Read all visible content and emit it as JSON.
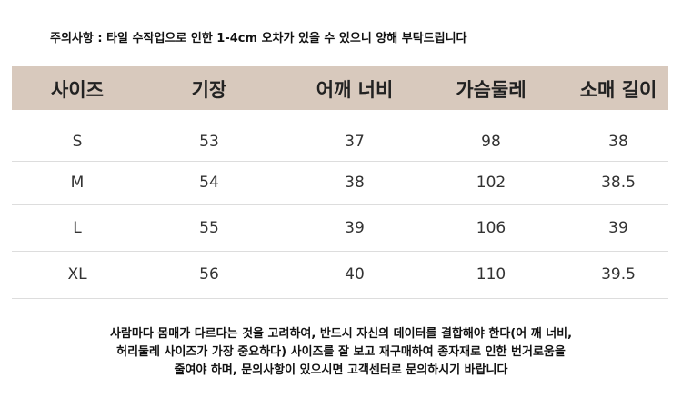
{
  "notice": "주의사항 : 타일 수작업으로 인한 1-4cm 오차가 있을 수 있으니 양해 부탁드립니다",
  "table": {
    "header": [
      "사이즈",
      "기장",
      "어깨 너비",
      "가슴둘레",
      "소매 길이"
    ],
    "rows": [
      [
        "S",
        53,
        37,
        98,
        38
      ],
      [
        "M",
        54,
        38,
        102,
        38.5
      ],
      [
        "L",
        55,
        39,
        106,
        39
      ],
      [
        "XL",
        56,
        40,
        110,
        39.5
      ]
    ]
  },
  "footer": [
    "사람마다 몸매가 다르다는 것을 고려하여, 반드시 자신의 데이터를 결합해야 한다(어 깨 너비,",
    "허리둘레 사이즈가 가장 중요하다) 사이즈를 잘 보고 재구매하여 종자재로  인한 번거로움을",
    "줄여야 하며, 문의사항이 있으시면 고객센터로 문의하시기 바랍니다"
  ]
}
